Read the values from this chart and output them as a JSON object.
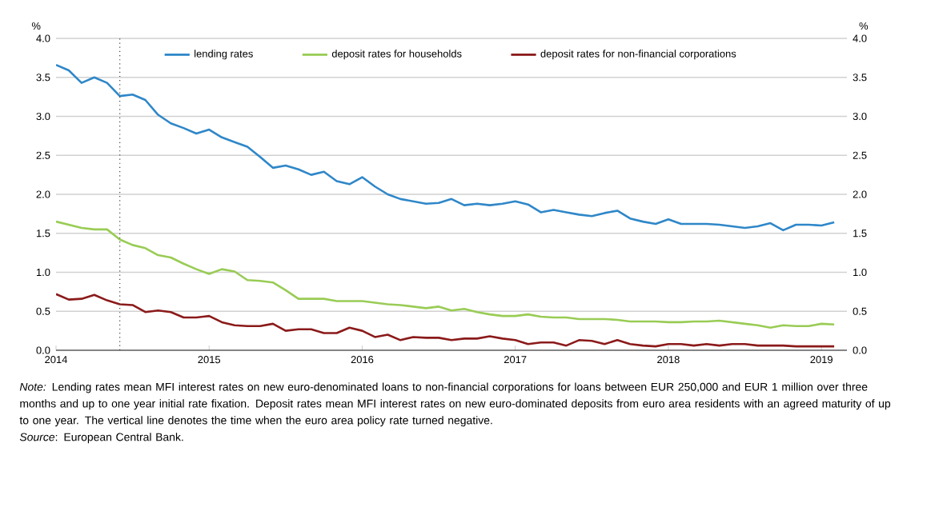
{
  "chart_data": {
    "type": "line",
    "x": [
      "2014-01",
      "2014-02",
      "2014-03",
      "2014-04",
      "2014-05",
      "2014-06",
      "2014-07",
      "2014-08",
      "2014-09",
      "2014-10",
      "2014-11",
      "2014-12",
      "2015-01",
      "2015-02",
      "2015-03",
      "2015-04",
      "2015-05",
      "2015-06",
      "2015-07",
      "2015-08",
      "2015-09",
      "2015-10",
      "2015-11",
      "2015-12",
      "2016-01",
      "2016-02",
      "2016-03",
      "2016-04",
      "2016-05",
      "2016-06",
      "2016-07",
      "2016-08",
      "2016-09",
      "2016-10",
      "2016-11",
      "2016-12",
      "2017-01",
      "2017-02",
      "2017-03",
      "2017-04",
      "2017-05",
      "2017-06",
      "2017-07",
      "2017-08",
      "2017-09",
      "2017-10",
      "2017-11",
      "2017-12",
      "2018-01",
      "2018-02",
      "2018-03",
      "2018-04",
      "2018-05",
      "2018-06",
      "2018-07",
      "2018-08",
      "2018-09",
      "2018-10",
      "2018-11",
      "2018-12",
      "2019-01",
      "2019-02"
    ],
    "series": [
      {
        "name": "lending rates",
        "color": "#2f87c8",
        "values": [
          3.66,
          3.59,
          3.43,
          3.5,
          3.43,
          3.26,
          3.28,
          3.21,
          3.02,
          2.91,
          2.85,
          2.78,
          2.83,
          2.73,
          2.67,
          2.61,
          2.48,
          2.34,
          2.37,
          2.32,
          2.25,
          2.29,
          2.17,
          2.13,
          2.22,
          2.1,
          2.0,
          1.94,
          1.91,
          1.88,
          1.89,
          1.94,
          1.86,
          1.88,
          1.86,
          1.88,
          1.91,
          1.87,
          1.77,
          1.8,
          1.77,
          1.74,
          1.72,
          1.76,
          1.79,
          1.69,
          1.65,
          1.62,
          1.68,
          1.62,
          1.62,
          1.62,
          1.61,
          1.59,
          1.57,
          1.59,
          1.63,
          1.54,
          1.61,
          1.61,
          1.6,
          1.64
        ]
      },
      {
        "name": "deposit rates for households",
        "color": "#99cc55",
        "values": [
          1.65,
          1.61,
          1.57,
          1.55,
          1.55,
          1.42,
          1.35,
          1.31,
          1.22,
          1.19,
          1.11,
          1.04,
          0.98,
          1.04,
          1.01,
          0.9,
          0.89,
          0.87,
          0.77,
          0.66,
          0.66,
          0.66,
          0.63,
          0.63,
          0.63,
          0.61,
          0.59,
          0.58,
          0.56,
          0.54,
          0.56,
          0.51,
          0.53,
          0.49,
          0.46,
          0.44,
          0.44,
          0.46,
          0.43,
          0.42,
          0.42,
          0.4,
          0.4,
          0.4,
          0.39,
          0.37,
          0.37,
          0.37,
          0.36,
          0.36,
          0.37,
          0.37,
          0.38,
          0.36,
          0.34,
          0.32,
          0.29,
          0.32,
          0.31,
          0.31,
          0.34,
          0.33
        ]
      },
      {
        "name": "deposit rates for non-financial corporations",
        "color": "#8b1a1a",
        "values": [
          0.72,
          0.65,
          0.66,
          0.71,
          0.64,
          0.59,
          0.58,
          0.49,
          0.51,
          0.49,
          0.42,
          0.42,
          0.44,
          0.36,
          0.32,
          0.31,
          0.31,
          0.34,
          0.25,
          0.27,
          0.27,
          0.22,
          0.22,
          0.29,
          0.25,
          0.17,
          0.2,
          0.13,
          0.17,
          0.16,
          0.16,
          0.13,
          0.15,
          0.15,
          0.18,
          0.15,
          0.13,
          0.08,
          0.1,
          0.1,
          0.06,
          0.13,
          0.12,
          0.08,
          0.13,
          0.08,
          0.06,
          0.05,
          0.08,
          0.08,
          0.06,
          0.08,
          0.06,
          0.08,
          0.08,
          0.06,
          0.06,
          0.06,
          0.05,
          0.05,
          0.05,
          0.05
        ]
      }
    ],
    "xlim": [
      "2014",
      "2019-03"
    ],
    "xticks": [
      "2014",
      "2015",
      "2016",
      "2017",
      "2018",
      "2019"
    ],
    "ylabel": "%",
    "y2label": "%",
    "ylim": [
      0,
      4
    ],
    "yticks": [
      {
        "value": 0,
        "label": "0.0"
      },
      {
        "value": 0.5,
        "label": "0.5"
      },
      {
        "value": 1,
        "label": "1.0"
      },
      {
        "value": 1.5,
        "label": "1.5"
      },
      {
        "value": 2,
        "label": "2.0"
      },
      {
        "value": 2.5,
        "label": "2.5"
      },
      {
        "value": 3,
        "label": "3.0"
      },
      {
        "value": 3.5,
        "label": "3.5"
      },
      {
        "value": 4,
        "label": "4.0"
      }
    ],
    "y2lim": [
      0,
      4
    ],
    "y2ticks": [
      {
        "value": 0,
        "label": "0.0"
      },
      {
        "value": 0.5,
        "label": "0.5"
      },
      {
        "value": 1,
        "label": "1.0"
      },
      {
        "value": 1.5,
        "label": "1.5"
      },
      {
        "value": 2,
        "label": "2.0"
      },
      {
        "value": 2.5,
        "label": "2.5"
      },
      {
        "value": 3,
        "label": "3.0"
      },
      {
        "value": 3.5,
        "label": "3.5"
      },
      {
        "value": 4,
        "label": "4.0"
      }
    ],
    "ref_lines": [
      {
        "axis": "x",
        "value": "2014-06",
        "line_style": "dotted",
        "color": "#404040"
      }
    ],
    "grid": "y",
    "legend": "top",
    "marker": "none",
    "line_style": "solid",
    "annotations": [
      "*Note:* Lending rates mean MFI interest rates on new euro-denominated loans to non-financial corporations for loans between EUR 250,000 and EUR 1 million over three months and up to one year initial rate fixation. Deposit rates mean MFI interest rates on new euro-dominated deposits from euro area residents with an agreed maturity of up to one year. The vertical line denotes the time when the euro area policy rate turned negative.",
      "*Source*: European Central Bank."
    ]
  }
}
